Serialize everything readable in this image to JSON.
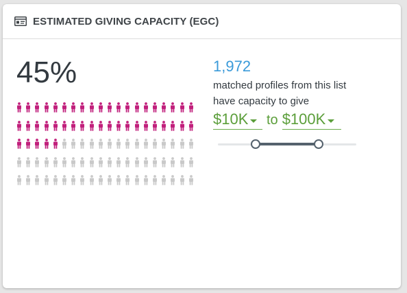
{
  "header": {
    "title": "ESTIMATED GIVING CAPACITY (EGC)",
    "icon": "id-card-icon"
  },
  "egc": {
    "percent_label": "45%",
    "percent_value": 0.45,
    "grid": {
      "rows": 5,
      "columns": 20,
      "filled_count": 45,
      "filled_color": "#c1207c",
      "empty_color": "#c9c9c9"
    },
    "matched_count": "1,972",
    "matched_line1": "matched profiles from this list",
    "matched_line2": "have capacity to give"
  },
  "range": {
    "min_label": "$10K",
    "to_label": "to",
    "max_label": "$100K",
    "slider_min_fraction": 0.27,
    "slider_max_fraction": 0.73,
    "accent_color": "#5b9e3a"
  }
}
